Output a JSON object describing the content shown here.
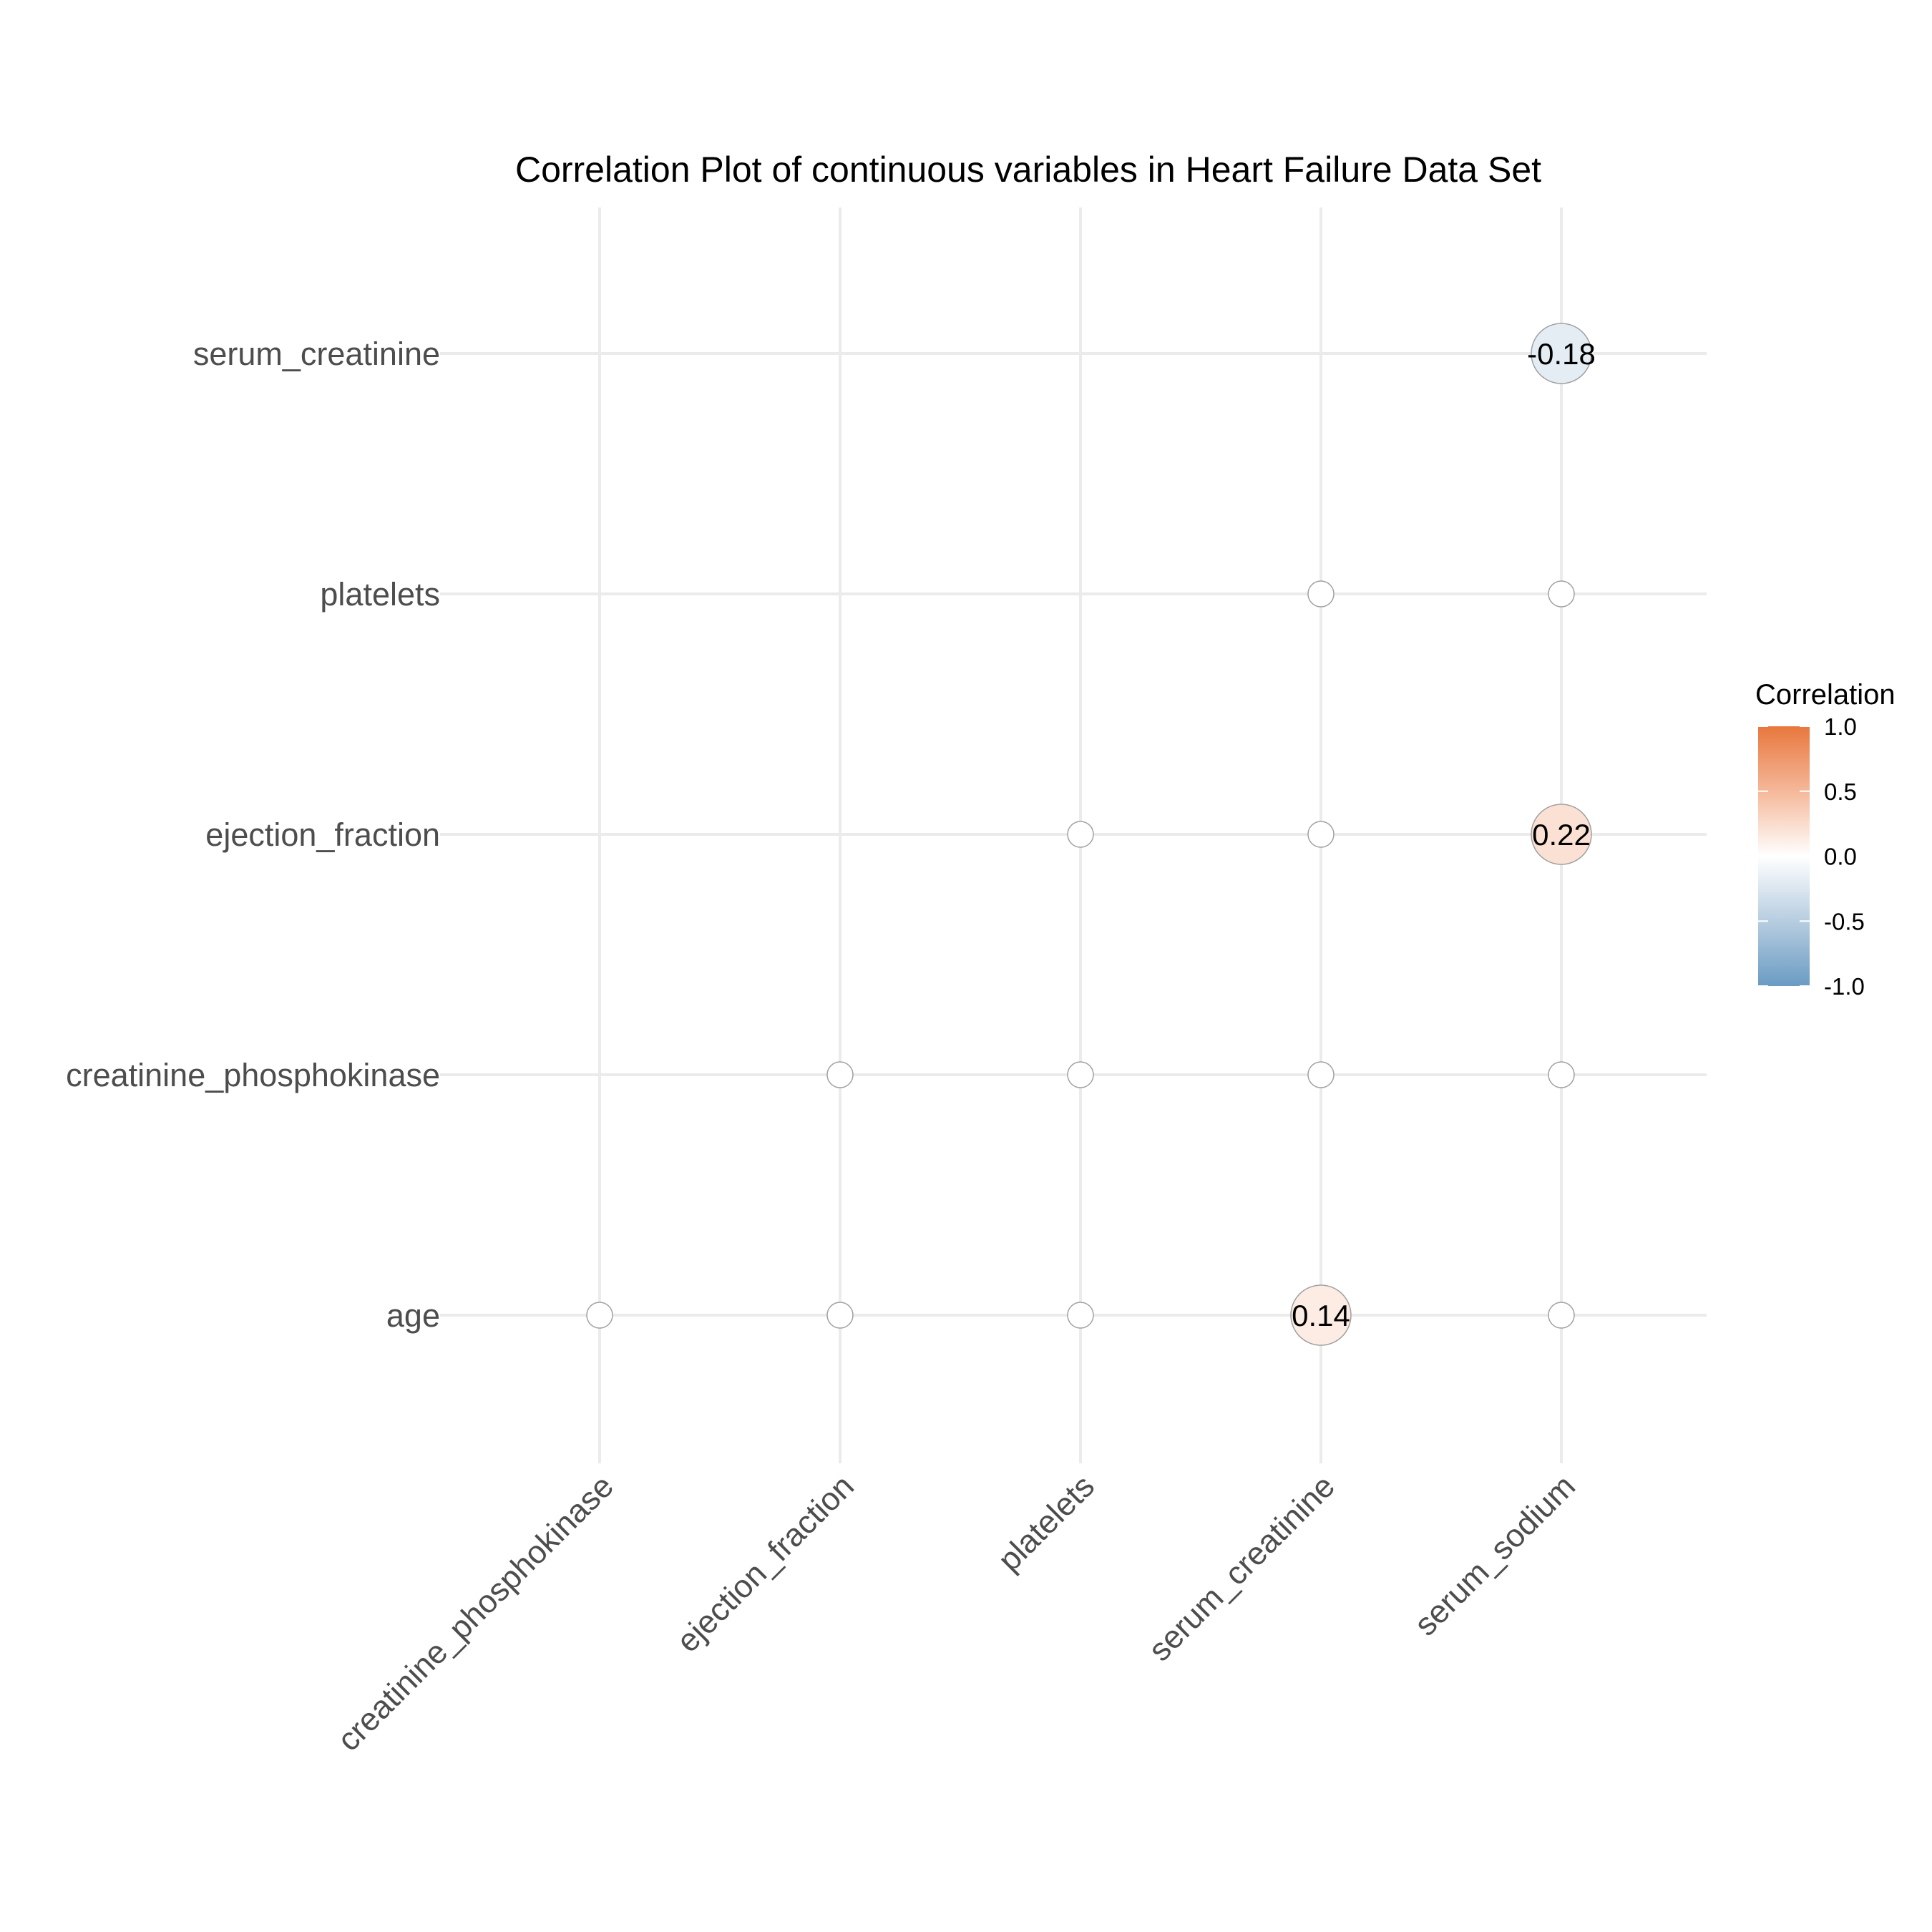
{
  "chart_data": {
    "type": "scatter",
    "title": "Correlation Plot of continuous variables in Heart Failure Data Set",
    "xlabel": "",
    "ylabel": "",
    "x_categories": [
      "creatinine_phosphokinase",
      "ejection_fraction",
      "platelets",
      "serum_creatinine",
      "serum_sodium"
    ],
    "y_categories": [
      "age",
      "creatinine_phosphokinase",
      "ejection_fraction",
      "platelets",
      "serum_creatinine"
    ],
    "grid": true,
    "legend": {
      "title": "Correlation",
      "position": "right",
      "ticks": [
        "1.0",
        "0.5",
        "0.0",
        "-0.5",
        "-1.0"
      ],
      "range": [
        -1,
        1
      ],
      "low_color": "#6a9bc3",
      "mid_color": "#ffffff",
      "high_color": "#e8773d"
    },
    "points": [
      {
        "x": "creatinine_phosphokinase",
        "y": "age",
        "value": null,
        "label": ""
      },
      {
        "x": "ejection_fraction",
        "y": "age",
        "value": null,
        "label": ""
      },
      {
        "x": "platelets",
        "y": "age",
        "value": null,
        "label": ""
      },
      {
        "x": "serum_creatinine",
        "y": "age",
        "value": 0.14,
        "label": "0.14"
      },
      {
        "x": "serum_sodium",
        "y": "age",
        "value": null,
        "label": ""
      },
      {
        "x": "ejection_fraction",
        "y": "creatinine_phosphokinase",
        "value": null,
        "label": ""
      },
      {
        "x": "platelets",
        "y": "creatinine_phosphokinase",
        "value": null,
        "label": ""
      },
      {
        "x": "serum_creatinine",
        "y": "creatinine_phosphokinase",
        "value": null,
        "label": ""
      },
      {
        "x": "serum_sodium",
        "y": "creatinine_phosphokinase",
        "value": null,
        "label": ""
      },
      {
        "x": "platelets",
        "y": "ejection_fraction",
        "value": null,
        "label": ""
      },
      {
        "x": "serum_creatinine",
        "y": "ejection_fraction",
        "value": null,
        "label": ""
      },
      {
        "x": "serum_sodium",
        "y": "ejection_fraction",
        "value": 0.22,
        "label": "0.22"
      },
      {
        "x": "serum_creatinine",
        "y": "platelets",
        "value": null,
        "label": ""
      },
      {
        "x": "serum_sodium",
        "y": "platelets",
        "value": null,
        "label": ""
      },
      {
        "x": "serum_sodium",
        "y": "serum_creatinine",
        "value": -0.18,
        "label": "-0.18"
      }
    ]
  }
}
